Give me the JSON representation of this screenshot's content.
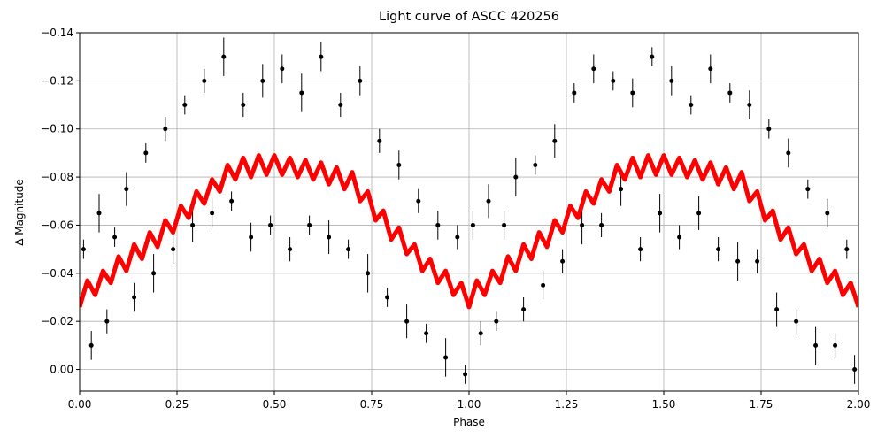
{
  "chart_data": {
    "type": "scatter",
    "title": "Light curve of ASCC 420256",
    "x_label": "Phase",
    "y_label": "Δ Magnitude",
    "xlim": [
      0,
      2
    ],
    "ylim": [
      0.009,
      -0.14
    ],
    "xticks": [
      {
        "value": 0,
        "label": "0.00"
      },
      {
        "value": 0.25,
        "label": "0.25"
      },
      {
        "value": 0.5,
        "label": "0.50"
      },
      {
        "value": 0.75,
        "label": "0.75"
      },
      {
        "value": 1,
        "label": "1.00"
      },
      {
        "value": 1.25,
        "label": "1.25"
      },
      {
        "value": 1.5,
        "label": "1.50"
      },
      {
        "value": 1.75,
        "label": "1.75"
      },
      {
        "value": 2,
        "label": "2.00"
      }
    ],
    "yticks": [
      {
        "value": 0,
        "label": "0.00"
      },
      {
        "value": -0.02,
        "label": "−0.02"
      },
      {
        "value": -0.04,
        "label": "−0.04"
      },
      {
        "value": -0.06,
        "label": "−0.06"
      },
      {
        "value": -0.08,
        "label": "−0.08"
      },
      {
        "value": -0.1,
        "label": "−0.10"
      },
      {
        "value": -0.12,
        "label": "−0.12"
      },
      {
        "value": -0.14,
        "label": "−0.14"
      }
    ],
    "grid": true,
    "points": {
      "color": "#000000",
      "x": [
        0.01,
        0.03,
        0.05,
        0.07,
        0.09,
        0.12,
        0.14,
        0.17,
        0.19,
        0.22,
        0.24,
        0.27,
        0.29,
        0.32,
        0.34,
        0.37,
        0.39,
        0.42,
        0.44,
        0.47,
        0.49,
        0.52,
        0.54,
        0.57,
        0.59,
        0.62,
        0.64,
        0.67,
        0.69,
        0.72,
        0.74,
        0.77,
        0.79,
        0.82,
        0.84,
        0.87,
        0.89,
        0.92,
        0.94,
        0.97,
        0.99,
        1.01,
        1.03,
        1.05,
        1.07,
        1.09,
        1.12,
        1.14,
        1.17,
        1.19,
        1.22,
        1.24,
        1.27,
        1.29,
        1.32,
        1.34,
        1.37,
        1.39,
        1.42,
        1.44,
        1.47,
        1.49,
        1.52,
        1.54,
        1.57,
        1.59,
        1.62,
        1.64,
        1.67,
        1.69,
        1.72,
        1.74,
        1.77,
        1.79,
        1.82,
        1.84,
        1.87,
        1.89,
        1.92,
        1.94,
        1.97,
        1.99
      ],
      "values": [
        -0.05,
        -0.01,
        -0.065,
        -0.02,
        -0.055,
        -0.075,
        -0.03,
        -0.09,
        -0.04,
        -0.1,
        -0.05,
        -0.11,
        -0.06,
        -0.12,
        -0.065,
        -0.13,
        -0.07,
        -0.11,
        -0.055,
        -0.12,
        -0.06,
        -0.125,
        -0.05,
        -0.115,
        -0.06,
        -0.13,
        -0.055,
        -0.11,
        -0.05,
        -0.12,
        -0.04,
        -0.095,
        -0.03,
        -0.085,
        -0.02,
        -0.07,
        -0.015,
        -0.06,
        -0.005,
        -0.055,
        0.002,
        -0.06,
        -0.015,
        -0.07,
        -0.02,
        -0.06,
        -0.08,
        -0.025,
        -0.085,
        -0.035,
        -0.095,
        -0.045,
        -0.115,
        -0.06,
        -0.125,
        -0.06,
        -0.12,
        -0.075,
        -0.115,
        -0.05,
        -0.13,
        -0.065,
        -0.12,
        -0.055,
        -0.11,
        -0.065,
        -0.125,
        -0.05,
        -0.115,
        -0.045,
        -0.11,
        -0.045,
        -0.1,
        -0.025,
        -0.09,
        -0.02,
        -0.075,
        -0.01,
        -0.065,
        -0.01,
        -0.05,
        0.0
      ],
      "errors": [
        0.004,
        0.006,
        0.008,
        0.005,
        0.004,
        0.007,
        0.006,
        0.004,
        0.008,
        0.005,
        0.006,
        0.004,
        0.007,
        0.005,
        0.006,
        0.008,
        0.004,
        0.005,
        0.006,
        0.007,
        0.004,
        0.006,
        0.005,
        0.008,
        0.004,
        0.006,
        0.007,
        0.005,
        0.004,
        0.006,
        0.008,
        0.005,
        0.004,
        0.006,
        0.007,
        0.005,
        0.004,
        0.006,
        0.008,
        0.005,
        0.004,
        0.006,
        0.005,
        0.007,
        0.004,
        0.006,
        0.008,
        0.005,
        0.004,
        0.006,
        0.007,
        0.005,
        0.004,
        0.008,
        0.006,
        0.005,
        0.004,
        0.007,
        0.006,
        0.005,
        0.004,
        0.008,
        0.006,
        0.005,
        0.004,
        0.007,
        0.006,
        0.005,
        0.004,
        0.008,
        0.006,
        0.005,
        0.004,
        0.007,
        0.006,
        0.005,
        0.004,
        0.008,
        0.006,
        0.005,
        0.004,
        0.006
      ]
    },
    "model": {
      "color": "#ff0000",
      "x": [
        0,
        0.02,
        0.04,
        0.06,
        0.08,
        0.1,
        0.12,
        0.14,
        0.16,
        0.18,
        0.2,
        0.22,
        0.24,
        0.26,
        0.28,
        0.3,
        0.32,
        0.34,
        0.36,
        0.38,
        0.4,
        0.42,
        0.44,
        0.46,
        0.48,
        0.5,
        0.52,
        0.54,
        0.56,
        0.58,
        0.6,
        0.62,
        0.64,
        0.66,
        0.68,
        0.7,
        0.72,
        0.74,
        0.76,
        0.78,
        0.8,
        0.82,
        0.84,
        0.86,
        0.88,
        0.9,
        0.92,
        0.94,
        0.96,
        0.98,
        1,
        1.02,
        1.04,
        1.06,
        1.08,
        1.1,
        1.12,
        1.14,
        1.16,
        1.18,
        1.2,
        1.22,
        1.24,
        1.26,
        1.28,
        1.3,
        1.32,
        1.34,
        1.36,
        1.38,
        1.4,
        1.42,
        1.44,
        1.46,
        1.48,
        1.5,
        1.52,
        1.54,
        1.56,
        1.58,
        1.6,
        1.62,
        1.64,
        1.66,
        1.68,
        1.7,
        1.72,
        1.74,
        1.76,
        1.78,
        1.8,
        1.82,
        1.84,
        1.86,
        1.88,
        1.9,
        1.92,
        1.94,
        1.96,
        1.98,
        2
      ],
      "values": [
        -0.026,
        -0.037,
        -0.031,
        -0.041,
        -0.036,
        -0.047,
        -0.041,
        -0.052,
        -0.046,
        -0.057,
        -0.051,
        -0.062,
        -0.057,
        -0.068,
        -0.063,
        -0.074,
        -0.069,
        -0.079,
        -0.074,
        -0.085,
        -0.079,
        -0.088,
        -0.08,
        -0.089,
        -0.081,
        -0.089,
        -0.081,
        -0.088,
        -0.08,
        -0.087,
        -0.079,
        -0.086,
        -0.077,
        -0.084,
        -0.075,
        -0.082,
        -0.07,
        -0.074,
        -0.062,
        -0.066,
        -0.054,
        -0.059,
        -0.048,
        -0.052,
        -0.041,
        -0.046,
        -0.036,
        -0.041,
        -0.031,
        -0.036,
        -0.026,
        -0.037,
        -0.031,
        -0.041,
        -0.036,
        -0.047,
        -0.041,
        -0.052,
        -0.046,
        -0.057,
        -0.051,
        -0.062,
        -0.057,
        -0.068,
        -0.063,
        -0.074,
        -0.069,
        -0.079,
        -0.074,
        -0.085,
        -0.079,
        -0.088,
        -0.08,
        -0.089,
        -0.081,
        -0.089,
        -0.081,
        -0.088,
        -0.08,
        -0.087,
        -0.079,
        -0.086,
        -0.077,
        -0.084,
        -0.075,
        -0.082,
        -0.07,
        -0.074,
        -0.062,
        -0.066,
        -0.054,
        -0.059,
        -0.048,
        -0.052,
        -0.041,
        -0.046,
        -0.036,
        -0.041,
        -0.031,
        -0.036,
        -0.026
      ]
    }
  }
}
